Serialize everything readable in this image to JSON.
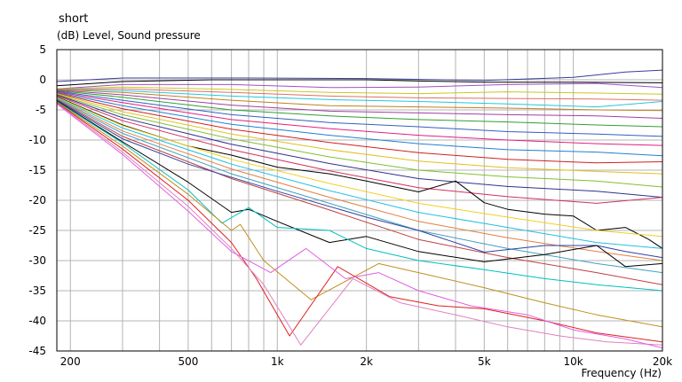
{
  "chart_data": {
    "type": "line",
    "title": "short",
    "ylabel": "(dB)  Level, Sound pressure",
    "xlabel": "Frequency  (Hz)",
    "x_scale": "log",
    "xlim": [
      180,
      20000
    ],
    "ylim": [
      -45,
      5
    ],
    "grid": true,
    "legend": "none",
    "y_ticks": [
      "5",
      "0",
      "-5",
      "-10",
      "-15",
      "-20",
      "-25",
      "-30",
      "-35",
      "-40",
      "-45"
    ],
    "x_ticks": [
      {
        "value": 200,
        "label": "200"
      },
      {
        "value": 500,
        "label": "500"
      },
      {
        "value": 1000,
        "label": "1k"
      },
      {
        "value": 2000,
        "label": "2k"
      },
      {
        "value": 5000,
        "label": "5k"
      },
      {
        "value": 10000,
        "label": "10k"
      },
      {
        "value": 20000,
        "label": "20k"
      }
    ],
    "x_minor_grid": [
      300,
      400,
      600,
      700,
      800,
      900,
      3000,
      4000,
      6000,
      7000,
      8000,
      9000
    ],
    "series": [
      {
        "color": "#3b3b9e",
        "x": [
          180,
          300,
          800,
          2000,
          5000,
          10000,
          15000,
          20000
        ],
        "y": [
          -0.3,
          0.3,
          0.3,
          0.2,
          -0.1,
          0.4,
          1.3,
          1.6
        ]
      },
      {
        "color": "#000000",
        "x": [
          180,
          300,
          600,
          1000,
          2000,
          3000,
          5000,
          10000,
          20000
        ],
        "y": [
          -1.0,
          -0.3,
          0.0,
          0.0,
          0.0,
          -0.2,
          -0.4,
          -0.4,
          -0.5
        ]
      },
      {
        "color": "#a050c8",
        "x": [
          180,
          300,
          700,
          1500,
          3000,
          6000,
          12000,
          20000
        ],
        "y": [
          -1.5,
          -0.8,
          -0.8,
          -1.3,
          -1.2,
          -0.8,
          -0.6,
          -1.3
        ]
      },
      {
        "color": "#c8c820",
        "x": [
          180,
          300,
          700,
          1500,
          3000,
          6000,
          12000,
          20000
        ],
        "y": [
          -1.5,
          -1.2,
          -1.6,
          -2.1,
          -2.3,
          -2.0,
          -2.2,
          -2.4
        ]
      },
      {
        "color": "#e07060",
        "x": [
          180,
          300,
          700,
          1500,
          3000,
          6000,
          12000,
          20000
        ],
        "y": [
          -1.5,
          -1.5,
          -2.1,
          -2.7,
          -3.0,
          -3.1,
          -3.2,
          -3.4
        ]
      },
      {
        "color": "#20c8e0",
        "x": [
          180,
          300,
          700,
          1500,
          3000,
          6000,
          12000,
          20000
        ],
        "y": [
          -1.6,
          -1.8,
          -2.7,
          -3.3,
          -3.6,
          -4.0,
          -4.5,
          -3.6
        ]
      },
      {
        "color": "#c08020",
        "x": [
          180,
          300,
          700,
          1500,
          3000,
          6000,
          12000,
          20000
        ],
        "y": [
          -1.6,
          -2.1,
          -3.4,
          -4.3,
          -4.5,
          -4.7,
          -5.0,
          -5.1
        ]
      },
      {
        "color": "#a040a0",
        "x": [
          180,
          300,
          700,
          1500,
          3000,
          6000,
          12000,
          20000
        ],
        "y": [
          -1.7,
          -2.5,
          -4.2,
          -5.2,
          -5.5,
          -5.8,
          -6.0,
          -6.4
        ]
      },
      {
        "color": "#30a030",
        "x": [
          180,
          300,
          700,
          1500,
          3000,
          6000,
          12000,
          20000
        ],
        "y": [
          -1.8,
          -2.9,
          -5.0,
          -6.0,
          -6.6,
          -7.0,
          -7.5,
          -7.8
        ]
      },
      {
        "color": "#3060c0",
        "x": [
          180,
          300,
          700,
          1500,
          3000,
          6000,
          12000,
          20000
        ],
        "y": [
          -1.9,
          -3.4,
          -5.8,
          -7.1,
          -7.8,
          -8.6,
          -9.0,
          -9.4
        ]
      },
      {
        "color": "#e02080",
        "x": [
          180,
          300,
          700,
          1500,
          3000,
          6000,
          12000,
          20000
        ],
        "y": [
          -2.0,
          -3.8,
          -6.6,
          -8.1,
          -9.2,
          -10.0,
          -10.6,
          -10.9
        ]
      },
      {
        "color": "#2080d0",
        "x": [
          180,
          300,
          700,
          1500,
          3000,
          6000,
          12000,
          20000
        ],
        "y": [
          -2.1,
          -4.3,
          -7.4,
          -9.2,
          -10.6,
          -11.6,
          -12.0,
          -12.6
        ]
      },
      {
        "color": "#d02020",
        "x": [
          180,
          300,
          700,
          1500,
          3000,
          6000,
          12000,
          20000
        ],
        "y": [
          -2.2,
          -4.8,
          -8.2,
          -10.4,
          -12.1,
          -13.2,
          -13.8,
          -13.6
        ]
      },
      {
        "color": "#e0c020",
        "x": [
          180,
          300,
          700,
          1500,
          3000,
          6000,
          12000,
          20000
        ],
        "y": [
          -2.3,
          -5.3,
          -9.0,
          -11.6,
          -13.5,
          -14.6,
          -15.2,
          -15.6
        ]
      },
      {
        "color": "#80c030",
        "x": [
          180,
          300,
          700,
          1500,
          3000,
          6000,
          12000,
          20000
        ],
        "y": [
          -2.4,
          -5.8,
          -9.8,
          -12.8,
          -15.0,
          -16.1,
          -16.8,
          -17.8
        ]
      },
      {
        "color": "#303090",
        "x": [
          180,
          300,
          700,
          1500,
          3000,
          6000,
          12000,
          20000
        ],
        "y": [
          -2.5,
          -6.3,
          -10.7,
          -13.9,
          -16.4,
          -17.7,
          -18.5,
          -19.5
        ]
      },
      {
        "color": "#d03060",
        "x": [
          180,
          300,
          700,
          1500,
          3000,
          6000,
          12000,
          20000
        ],
        "y": [
          -2.6,
          -6.8,
          -11.6,
          -15.1,
          -17.9,
          -19.4,
          -20.5,
          -19.5
        ]
      },
      {
        "color": "#000000",
        "x": [
          180,
          300,
          500,
          700,
          1000,
          1500,
          2000,
          3000,
          4000,
          5000,
          6000,
          8000,
          10000,
          12000,
          15000,
          18000,
          20000
        ],
        "y": [
          -2.8,
          -7.5,
          -11.0,
          -12.5,
          -14.5,
          -15.6,
          -16.8,
          -18.6,
          -16.8,
          -20.4,
          -21.5,
          -22.3,
          -22.6,
          -25.0,
          -24.5,
          -26.5,
          -28.0
        ]
      },
      {
        "color": "#f0d020",
        "x": [
          180,
          300,
          700,
          1500,
          3000,
          6000,
          12000,
          20000
        ],
        "y": [
          -2.9,
          -7.6,
          -13.2,
          -17.2,
          -20.5,
          -22.8,
          -25.0,
          -26.0
        ]
      },
      {
        "color": "#20c0e0",
        "x": [
          180,
          300,
          700,
          1500,
          3000,
          6000,
          12000,
          20000
        ],
        "y": [
          -3.0,
          -8.0,
          -14.0,
          -18.4,
          -22.0,
          -24.5,
          -27.0,
          -28.0
        ]
      },
      {
        "color": "#e08040",
        "x": [
          180,
          300,
          700,
          1500,
          3000,
          6000,
          12000,
          20000
        ],
        "y": [
          -3.1,
          -8.5,
          -14.8,
          -19.5,
          -23.5,
          -26.2,
          -28.5,
          -30.0
        ]
      },
      {
        "color": "#40a0c0",
        "x": [
          180,
          300,
          700,
          1500,
          3000,
          6000,
          12000,
          20000
        ],
        "y": [
          -3.2,
          -8.9,
          -15.6,
          -20.5,
          -25.0,
          -28.0,
          -30.5,
          -32.0
        ]
      },
      {
        "color": "#c04040",
        "x": [
          180,
          300,
          700,
          1500,
          3000,
          6000,
          12000,
          20000
        ],
        "y": [
          -3.3,
          -9.4,
          -16.4,
          -21.6,
          -26.5,
          -29.5,
          -32.0,
          -34.0
        ]
      },
      {
        "color": "#3040a0",
        "x": [
          180,
          300,
          500,
          1000,
          2000,
          3000,
          5000,
          8000,
          12000,
          15000,
          20000
        ],
        "y": [
          -3.4,
          -9.8,
          -14.0,
          -18.5,
          -22.8,
          -25.0,
          -28.6,
          -27.5,
          -27.5,
          -28.5,
          -29.5
        ]
      },
      {
        "color": "#000000",
        "x": [
          180,
          300,
          500,
          700,
          800,
          1000,
          1500,
          2000,
          3000,
          5000,
          8000,
          12000,
          15000,
          20000
        ],
        "y": [
          -3.5,
          -10.3,
          -17.0,
          -22.0,
          -21.5,
          -23.5,
          -27.0,
          -26.0,
          -28.5,
          -30.2,
          -29.0,
          -27.5,
          -31.0,
          -30.5
        ]
      },
      {
        "color": "#00c0c0",
        "x": [
          180,
          300,
          500,
          650,
          800,
          1000,
          1500,
          2000,
          3000,
          5000,
          8000,
          12000,
          20000
        ],
        "y": [
          -3.6,
          -10.5,
          -18.3,
          -23.8,
          -21.2,
          -24.5,
          -25.0,
          -28.0,
          -30.0,
          -31.5,
          -33.0,
          -34.0,
          -35.0
        ]
      },
      {
        "color": "#c09020",
        "x": [
          180,
          300,
          500,
          700,
          750,
          900,
          1300,
          2200,
          3000,
          5000,
          8000,
          12000,
          20000
        ],
        "y": [
          -3.7,
          -11.0,
          -19.0,
          -25.0,
          -24.0,
          -30.0,
          -36.5,
          -30.5,
          -32.0,
          -34.5,
          -37.0,
          -39.0,
          -41.0
        ]
      },
      {
        "color": "#e02020",
        "x": [
          180,
          300,
          500,
          700,
          850,
          1100,
          1600,
          2400,
          3500,
          5000,
          8000,
          12000,
          20000
        ],
        "y": [
          -3.8,
          -11.5,
          -20.0,
          -27.0,
          -33.0,
          -42.5,
          -31.0,
          -36.0,
          -37.5,
          -38.0,
          -40.0,
          -42.0,
          -43.5
        ]
      },
      {
        "color": "#e080c0",
        "x": [
          180,
          300,
          500,
          700,
          900,
          1200,
          1800,
          2600,
          4000,
          6000,
          9000,
          13000,
          20000
        ],
        "y": [
          -3.9,
          -12.0,
          -21.0,
          -28.0,
          -34.0,
          -44.0,
          -33.0,
          -37.0,
          -39.0,
          -41.0,
          -42.5,
          -43.5,
          -44.0
        ]
      },
      {
        "color": "#e060e0",
        "x": [
          180,
          300,
          500,
          700,
          950,
          1250,
          1700,
          2200,
          3000,
          4500,
          7000,
          10000,
          15000,
          20000
        ],
        "y": [
          -4.0,
          -12.4,
          -21.8,
          -28.5,
          -32.0,
          -28.0,
          -33.0,
          -32.0,
          -35.0,
          -37.5,
          -39.0,
          -41.5,
          -43.0,
          -44.5
        ]
      }
    ]
  }
}
